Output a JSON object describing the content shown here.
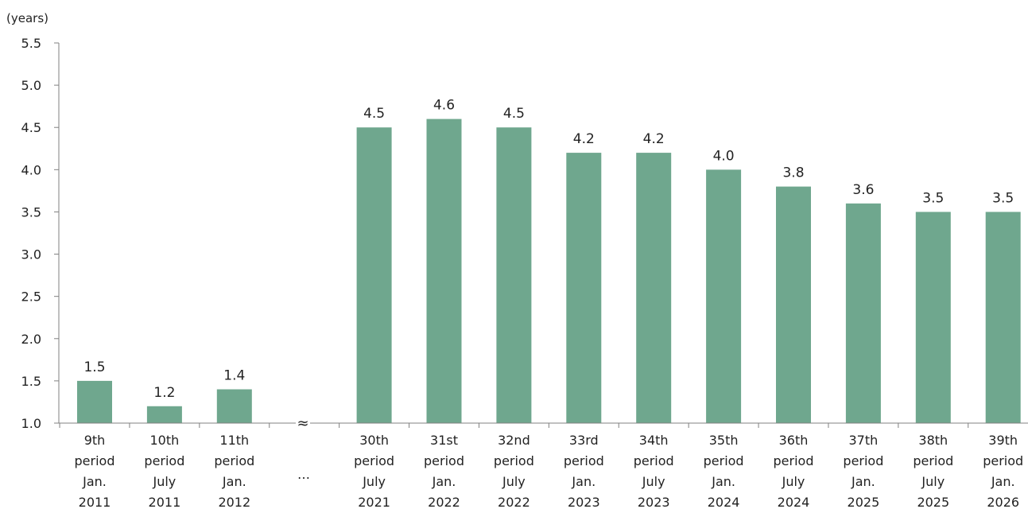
{
  "chart_data": {
    "type": "bar",
    "unit_label": "(years)",
    "ylim": [
      1.0,
      5.5
    ],
    "yticks": [
      "1.0",
      "1.5",
      "2.0",
      "2.5",
      "3.0",
      "3.5",
      "4.0",
      "4.5",
      "5.0",
      "5.5"
    ],
    "grid": false,
    "bar_color": "#6fa78e",
    "axis_color": "#808080",
    "break_marker": "≈",
    "break_label": "…",
    "categories": [
      [
        "9th",
        "period",
        "Jan.",
        "2011"
      ],
      [
        "10th",
        "period",
        "July",
        "2011"
      ],
      [
        "11th",
        "period",
        "Jan.",
        "2012"
      ],
      [
        "30th",
        "period",
        "July",
        "2021"
      ],
      [
        "31st",
        "period",
        "Jan.",
        "2022"
      ],
      [
        "32nd",
        "period",
        "July",
        "2022"
      ],
      [
        "33rd",
        "period",
        "Jan.",
        "2023"
      ],
      [
        "34th",
        "period",
        "July",
        "2023"
      ],
      [
        "35th",
        "period",
        "Jan.",
        "2024"
      ],
      [
        "36th",
        "period",
        "July",
        "2024"
      ],
      [
        "37th",
        "period",
        "Jan.",
        "2025"
      ],
      [
        "38th",
        "period",
        "July",
        "2025"
      ],
      [
        "39th",
        "period",
        "Jan.",
        "2026"
      ]
    ],
    "values": [
      1.5,
      1.2,
      1.4,
      4.5,
      4.6,
      4.5,
      4.2,
      4.2,
      4.0,
      3.8,
      3.6,
      3.5,
      3.5
    ],
    "data_labels": [
      "1.5",
      "1.2",
      "1.4",
      "4.5",
      "4.6",
      "4.5",
      "4.2",
      "4.2",
      "4.0",
      "3.8",
      "3.6",
      "3.5",
      "3.5"
    ]
  }
}
